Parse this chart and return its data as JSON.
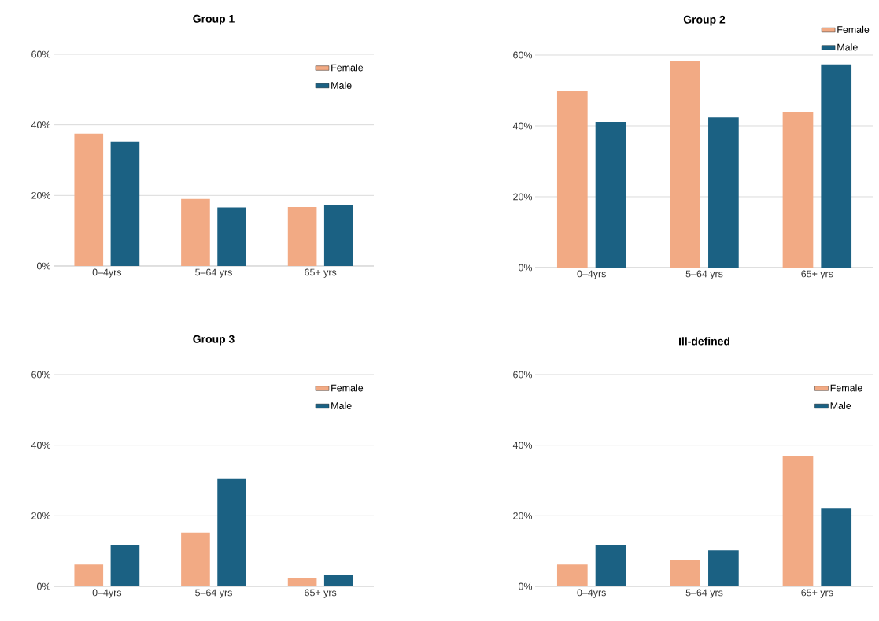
{
  "chart_data": [
    {
      "type": "bar",
      "title": "Group 1",
      "categories": [
        "0–4yrs",
        "5–64 yrs",
        "65+ yrs"
      ],
      "series": [
        {
          "name": "Female",
          "color": "#f2aa84",
          "values": [
            37.5,
            19,
            16.7
          ]
        },
        {
          "name": "Male",
          "color": "#1b6183",
          "values": [
            35.3,
            16.6,
            17.4
          ]
        }
      ],
      "ylim": [
        0,
        60
      ],
      "yticks": [
        {
          "value": 0,
          "label": "0%"
        },
        {
          "value": 20,
          "label": "20%"
        },
        {
          "value": 40,
          "label": "40%"
        },
        {
          "value": 60,
          "label": "60%"
        }
      ],
      "grid": "y",
      "legend": "top right"
    },
    {
      "type": "bar",
      "title": "Group 2",
      "categories": [
        "0–4yrs",
        "5–64 yrs",
        "65+ yrs"
      ],
      "series": [
        {
          "name": "Female",
          "color": "#f2aa84",
          "values": [
            50,
            58.2,
            44
          ]
        },
        {
          "name": "Male",
          "color": "#1b6183",
          "values": [
            41.1,
            42.4,
            57.4
          ]
        }
      ],
      "ylim": [
        0,
        60
      ],
      "yticks": [
        {
          "value": 0,
          "label": "0%"
        },
        {
          "value": 20,
          "label": "20%"
        },
        {
          "value": 40,
          "label": "40%"
        },
        {
          "value": 60,
          "label": "60%"
        }
      ],
      "grid": "y",
      "legend": "top right"
    },
    {
      "type": "bar",
      "title": "Group 3",
      "categories": [
        "0–4yrs",
        "5–64 yrs",
        "65+ yrs"
      ],
      "series": [
        {
          "name": "Female",
          "color": "#f2aa84",
          "values": [
            6.2,
            15.2,
            2.2
          ]
        },
        {
          "name": "Male",
          "color": "#1b6183",
          "values": [
            11.7,
            30.6,
            3.2
          ]
        }
      ],
      "ylim": [
        0,
        60
      ],
      "yticks": [
        {
          "value": 0,
          "label": "0%"
        },
        {
          "value": 20,
          "label": "20%"
        },
        {
          "value": 40,
          "label": "40%"
        },
        {
          "value": 60,
          "label": "60%"
        }
      ],
      "grid": "y",
      "legend": "top right"
    },
    {
      "type": "bar",
      "title": "Ill-defined",
      "categories": [
        "0–4yrs",
        "5–64 yrs",
        "65+ yrs"
      ],
      "series": [
        {
          "name": "Female",
          "color": "#f2aa84",
          "values": [
            6.2,
            7.5,
            37
          ]
        },
        {
          "name": "Male",
          "color": "#1b6183",
          "values": [
            11.7,
            10.2,
            22
          ]
        }
      ],
      "ylim": [
        0,
        60
      ],
      "yticks": [
        {
          "value": 0,
          "label": "0%"
        },
        {
          "value": 20,
          "label": "20%"
        },
        {
          "value": 40,
          "label": "40%"
        },
        {
          "value": 60,
          "label": "60%"
        }
      ],
      "grid": "y",
      "legend": "top right"
    }
  ]
}
